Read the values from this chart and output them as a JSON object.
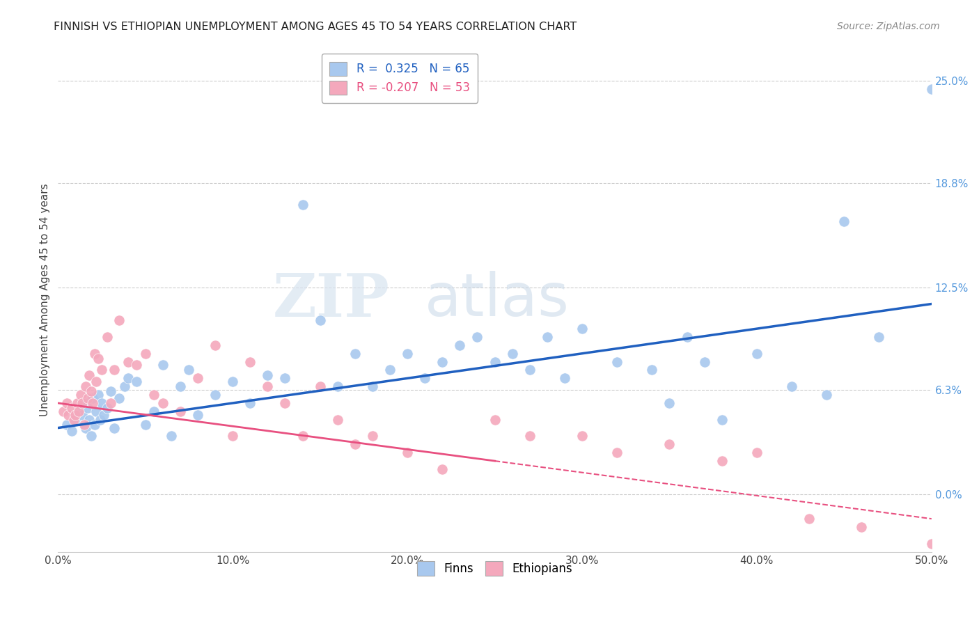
{
  "title": "FINNISH VS ETHIOPIAN UNEMPLOYMENT AMONG AGES 45 TO 54 YEARS CORRELATION CHART",
  "source": "Source: ZipAtlas.com",
  "ylabel": "Unemployment Among Ages 45 to 54 years",
  "xlabel_vals": [
    0.0,
    10.0,
    20.0,
    30.0,
    40.0,
    50.0
  ],
  "ylabel_vals": [
    0.0,
    6.3,
    12.5,
    18.8,
    25.0
  ],
  "xlim": [
    0.0,
    50.0
  ],
  "ylim": [
    -3.5,
    27.0
  ],
  "finn_R": 0.325,
  "finn_N": 65,
  "ethi_R": -0.207,
  "ethi_N": 53,
  "finn_color": "#A8C8EE",
  "ethi_color": "#F4A8BC",
  "finn_line_color": "#2060C0",
  "ethi_line_color": "#E85080",
  "watermark_zip": "ZIP",
  "watermark_atlas": "atlas",
  "finn_x": [
    0.5,
    0.8,
    1.0,
    1.2,
    1.4,
    1.5,
    1.6,
    1.7,
    1.8,
    1.9,
    2.0,
    2.1,
    2.2,
    2.3,
    2.4,
    2.5,
    2.6,
    2.8,
    3.0,
    3.2,
    3.5,
    3.8,
    4.0,
    4.5,
    5.0,
    5.5,
    6.0,
    6.5,
    7.0,
    7.5,
    8.0,
    9.0,
    10.0,
    11.0,
    12.0,
    13.0,
    14.0,
    15.0,
    16.0,
    17.0,
    18.0,
    19.0,
    20.0,
    21.0,
    22.0,
    23.0,
    24.0,
    25.0,
    26.0,
    27.0,
    28.0,
    29.0,
    30.0,
    32.0,
    34.0,
    35.0,
    36.0,
    37.0,
    38.0,
    40.0,
    42.0,
    44.0,
    45.0,
    47.0,
    50.0
  ],
  "finn_y": [
    4.2,
    3.8,
    4.5,
    5.0,
    4.8,
    5.5,
    4.0,
    5.2,
    4.5,
    3.5,
    5.8,
    4.2,
    5.0,
    6.0,
    4.5,
    5.5,
    4.8,
    5.2,
    6.2,
    4.0,
    5.8,
    6.5,
    7.0,
    6.8,
    4.2,
    5.0,
    7.8,
    3.5,
    6.5,
    7.5,
    4.8,
    6.0,
    6.8,
    5.5,
    7.2,
    7.0,
    17.5,
    10.5,
    6.5,
    8.5,
    6.5,
    7.5,
    8.5,
    7.0,
    8.0,
    9.0,
    9.5,
    8.0,
    8.5,
    7.5,
    9.5,
    7.0,
    10.0,
    8.0,
    7.5,
    5.5,
    9.5,
    8.0,
    4.5,
    8.5,
    6.5,
    6.0,
    16.5,
    9.5,
    24.5
  ],
  "ethi_x": [
    0.3,
    0.5,
    0.6,
    0.8,
    0.9,
    1.0,
    1.1,
    1.2,
    1.3,
    1.4,
    1.5,
    1.6,
    1.7,
    1.8,
    1.9,
    2.0,
    2.1,
    2.2,
    2.3,
    2.5,
    2.8,
    3.0,
    3.2,
    3.5,
    4.0,
    4.5,
    5.0,
    5.5,
    6.0,
    7.0,
    8.0,
    9.0,
    10.0,
    11.0,
    12.0,
    13.0,
    14.0,
    15.0,
    16.0,
    17.0,
    18.0,
    20.0,
    22.0,
    25.0,
    27.0,
    30.0,
    32.0,
    35.0,
    38.0,
    40.0,
    43.0,
    46.0,
    50.0
  ],
  "ethi_y": [
    5.0,
    5.5,
    4.8,
    5.2,
    4.5,
    4.8,
    5.5,
    5.0,
    6.0,
    5.5,
    4.2,
    6.5,
    5.8,
    7.2,
    6.2,
    5.5,
    8.5,
    6.8,
    8.2,
    7.5,
    9.5,
    5.5,
    7.5,
    10.5,
    8.0,
    7.8,
    8.5,
    6.0,
    5.5,
    5.0,
    7.0,
    9.0,
    3.5,
    8.0,
    6.5,
    5.5,
    3.5,
    6.5,
    4.5,
    3.0,
    3.5,
    2.5,
    1.5,
    4.5,
    3.5,
    3.5,
    2.5,
    3.0,
    2.0,
    2.5,
    -1.5,
    -2.0,
    -3.0
  ]
}
